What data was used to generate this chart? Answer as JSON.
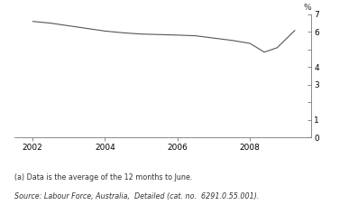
{
  "x": [
    2002,
    2002.5,
    2003,
    2003.5,
    2004,
    2004.5,
    2005,
    2005.5,
    2006,
    2006.5,
    2007,
    2007.5,
    2008,
    2008.4,
    2008.75,
    2009.25
  ],
  "y": [
    6.6,
    6.5,
    6.35,
    6.2,
    6.05,
    5.95,
    5.88,
    5.85,
    5.82,
    5.78,
    5.65,
    5.52,
    5.35,
    4.85,
    5.1,
    6.1
  ],
  "xlim": [
    2001.5,
    2009.7
  ],
  "ylim": [
    0,
    7
  ],
  "yticks": [
    0,
    1,
    2,
    3,
    4,
    5,
    6,
    7
  ],
  "ytick_labels": [
    "0",
    "1",
    "",
    "3",
    "4",
    "",
    "6",
    "7"
  ],
  "xticks": [
    2002,
    2004,
    2006,
    2008
  ],
  "ylabel_top": "%",
  "line_color": "#555555",
  "line_width": 0.8,
  "footnote1": "(a) Data is the average of the 12 months to June.",
  "footnote2": "Source: Labour Force, Australia,  Detailed (cat. no.  6291.0.55.001).",
  "bg_color": "#ffffff"
}
